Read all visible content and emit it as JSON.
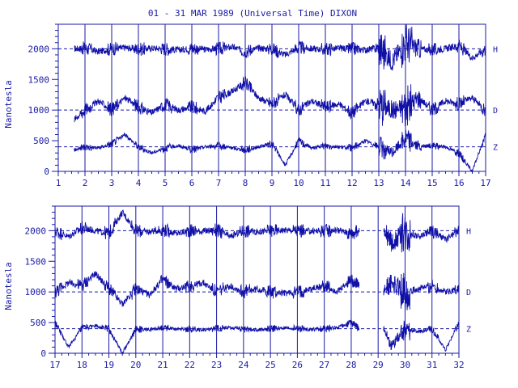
{
  "chart_data": [
    {
      "type": "line",
      "title": "01 - 31 MAR 1989 (Universal Time) DIXON",
      "ylabel": "Nanotesla",
      "xlim": [
        1,
        17
      ],
      "ylim": [
        0,
        2400
      ],
      "y_ticks": [
        0,
        500,
        1000,
        1500,
        2000
      ],
      "x_ticks": [
        1,
        2,
        3,
        4,
        5,
        6,
        7,
        8,
        9,
        10,
        11,
        12,
        13,
        14,
        15,
        16,
        17
      ],
      "baselines": [
        2000,
        1000,
        400
      ],
      "grid": "vertical day lines; dashed horizontal baselines",
      "series": [
        {
          "name": "H",
          "baseline": 2000,
          "values": [
            [
              1.6,
              2000
            ],
            [
              2,
              2010
            ],
            [
              2.5,
              1950
            ],
            [
              3,
              2000
            ],
            [
              3.5,
              2020
            ],
            [
              4,
              1990
            ],
            [
              4.5,
              2010
            ],
            [
              5,
              2000
            ],
            [
              5.5,
              1980
            ],
            [
              6,
              2010
            ],
            [
              6.5,
              1990
            ],
            [
              7,
              2000
            ],
            [
              7.5,
              2030
            ],
            [
              8,
              1960
            ],
            [
              8.5,
              2010
            ],
            [
              9,
              2000
            ],
            [
              9.5,
              1900
            ],
            [
              10,
              2020
            ],
            [
              10.5,
              2000
            ],
            [
              11,
              1990
            ],
            [
              11.5,
              2010
            ],
            [
              12,
              2000
            ],
            [
              12.5,
              1980
            ],
            [
              13,
              2020
            ],
            [
              13.5,
              1800
            ],
            [
              14,
              2100
            ],
            [
              14.5,
              2000
            ],
            [
              15,
              1980
            ],
            [
              15.5,
              2000
            ],
            [
              16,
              2050
            ],
            [
              16.5,
              1850
            ],
            [
              17,
              2000
            ]
          ]
        },
        {
          "name": "D",
          "baseline": 1000,
          "values": [
            [
              1.6,
              850
            ],
            [
              2,
              1000
            ],
            [
              2.5,
              1150
            ],
            [
              3,
              1000
            ],
            [
              3.5,
              1200
            ],
            [
              4,
              1050
            ],
            [
              4.5,
              950
            ],
            [
              5,
              1100
            ],
            [
              5.5,
              1000
            ],
            [
              6,
              1050
            ],
            [
              6.5,
              980
            ],
            [
              7,
              1200
            ],
            [
              7.5,
              1300
            ],
            [
              8,
              1450
            ],
            [
              8.5,
              1200
            ],
            [
              9,
              1100
            ],
            [
              9.5,
              1250
            ],
            [
              10,
              1000
            ],
            [
              10.5,
              1150
            ],
            [
              11,
              1050
            ],
            [
              11.5,
              1100
            ],
            [
              12,
              950
            ],
            [
              12.5,
              1150
            ],
            [
              13,
              1100
            ],
            [
              13.5,
              1000
            ],
            [
              14,
              1050
            ],
            [
              14.5,
              1200
            ],
            [
              15,
              1000
            ],
            [
              15.5,
              1150
            ],
            [
              16,
              1100
            ],
            [
              16.5,
              1200
            ],
            [
              17,
              1000
            ]
          ]
        },
        {
          "name": "Z",
          "baseline": 400,
          "values": [
            [
              1.6,
              350
            ],
            [
              2,
              400
            ],
            [
              2.5,
              380
            ],
            [
              3,
              450
            ],
            [
              3.5,
              600
            ],
            [
              4,
              400
            ],
            [
              4.5,
              300
            ],
            [
              5,
              380
            ],
            [
              5.5,
              420
            ],
            [
              6,
              350
            ],
            [
              6.5,
              400
            ],
            [
              7,
              420
            ],
            [
              7.5,
              380
            ],
            [
              8,
              350
            ],
            [
              8.5,
              400
            ],
            [
              9,
              450
            ],
            [
              9.5,
              100
            ],
            [
              10,
              500
            ],
            [
              10.5,
              380
            ],
            [
              11,
              420
            ],
            [
              11.5,
              400
            ],
            [
              12,
              380
            ],
            [
              12.5,
              500
            ],
            [
              13,
              400
            ],
            [
              13.5,
              300
            ],
            [
              14,
              550
            ],
            [
              14.5,
              400
            ],
            [
              15,
              420
            ],
            [
              15.5,
              400
            ],
            [
              16,
              300
            ],
            [
              16.5,
              0
            ],
            [
              17,
              600
            ]
          ]
        }
      ],
      "series_labels": [
        "H",
        "D",
        "Z"
      ]
    },
    {
      "type": "line",
      "ylabel": "Nanotesla",
      "xlim": [
        17,
        32
      ],
      "ylim": [
        0,
        2400
      ],
      "y_ticks": [
        0,
        500,
        1000,
        1500,
        2000
      ],
      "x_ticks": [
        17,
        18,
        19,
        20,
        21,
        22,
        23,
        24,
        25,
        26,
        27,
        28,
        29,
        30,
        31,
        32
      ],
      "baselines": [
        2000,
        1000,
        400
      ],
      "grid": "vertical day lines; dashed horizontal baselines",
      "gaps": [
        [
          28.3,
          29.2
        ]
      ],
      "series": [
        {
          "name": "H",
          "baseline": 2000,
          "values": [
            [
              17,
              2000
            ],
            [
              17.5,
              1900
            ],
            [
              18,
              2050
            ],
            [
              18.5,
              2000
            ],
            [
              19,
              1950
            ],
            [
              19.5,
              2300
            ],
            [
              20,
              2000
            ],
            [
              20.5,
              1980
            ],
            [
              21,
              2020
            ],
            [
              21.5,
              1950
            ],
            [
              22,
              2000
            ],
            [
              22.5,
              1990
            ],
            [
              23,
              2010
            ],
            [
              23.5,
              1900
            ],
            [
              24,
              2000
            ],
            [
              24.5,
              1980
            ],
            [
              25,
              2000
            ],
            [
              25.5,
              2010
            ],
            [
              26,
              2000
            ],
            [
              26.5,
              1990
            ],
            [
              27,
              2000
            ],
            [
              27.5,
              2010
            ],
            [
              28,
              1950
            ],
            [
              28.3,
              2000
            ],
            [
              29.2,
              2000
            ],
            [
              29.5,
              1800
            ],
            [
              30,
              2000
            ],
            [
              30.5,
              1900
            ],
            [
              31,
              2000
            ],
            [
              31.5,
              1850
            ],
            [
              32,
              2000
            ]
          ]
        },
        {
          "name": "D",
          "baseline": 1000,
          "values": [
            [
              17,
              1000
            ],
            [
              17.5,
              1150
            ],
            [
              18,
              1100
            ],
            [
              18.5,
              1300
            ],
            [
              19,
              1050
            ],
            [
              19.5,
              800
            ],
            [
              20,
              1050
            ],
            [
              20.5,
              950
            ],
            [
              21,
              1200
            ],
            [
              21.5,
              1050
            ],
            [
              22,
              1100
            ],
            [
              22.5,
              1150
            ],
            [
              23,
              1000
            ],
            [
              23.5,
              1100
            ],
            [
              24,
              1000
            ],
            [
              24.5,
              1050
            ],
            [
              25,
              1000
            ],
            [
              25.5,
              980
            ],
            [
              26,
              1000
            ],
            [
              26.5,
              1050
            ],
            [
              27,
              1100
            ],
            [
              27.5,
              1000
            ],
            [
              28,
              1200
            ],
            [
              28.3,
              1100
            ],
            [
              29.2,
              1000
            ],
            [
              29.5,
              1150
            ],
            [
              30,
              1000
            ],
            [
              30.5,
              1050
            ],
            [
              31,
              1100
            ],
            [
              31.5,
              1000
            ],
            [
              32,
              1050
            ]
          ]
        },
        {
          "name": "Z",
          "baseline": 400,
          "values": [
            [
              17,
              500
            ],
            [
              17.5,
              100
            ],
            [
              18,
              400
            ],
            [
              18.5,
              450
            ],
            [
              19,
              400
            ],
            [
              19.5,
              0
            ],
            [
              20,
              400
            ],
            [
              20.5,
              380
            ],
            [
              21,
              420
            ],
            [
              21.5,
              400
            ],
            [
              22,
              400
            ],
            [
              22.5,
              380
            ],
            [
              23,
              400
            ],
            [
              23.5,
              420
            ],
            [
              24,
              400
            ],
            [
              24.5,
              380
            ],
            [
              25,
              400
            ],
            [
              25.5,
              410
            ],
            [
              26,
              400
            ],
            [
              26.5,
              390
            ],
            [
              27,
              400
            ],
            [
              27.5,
              420
            ],
            [
              28,
              500
            ],
            [
              28.3,
              400
            ],
            [
              29.2,
              400
            ],
            [
              29.5,
              100
            ],
            [
              30,
              400
            ],
            [
              30.5,
              350
            ],
            [
              31,
              400
            ],
            [
              31.5,
              50
            ],
            [
              32,
              500
            ]
          ]
        }
      ],
      "series_labels": [
        "H",
        "D",
        "Z"
      ]
    }
  ],
  "colors": {
    "ink": "#1a1aa6",
    "trace": "#1010a8"
  }
}
